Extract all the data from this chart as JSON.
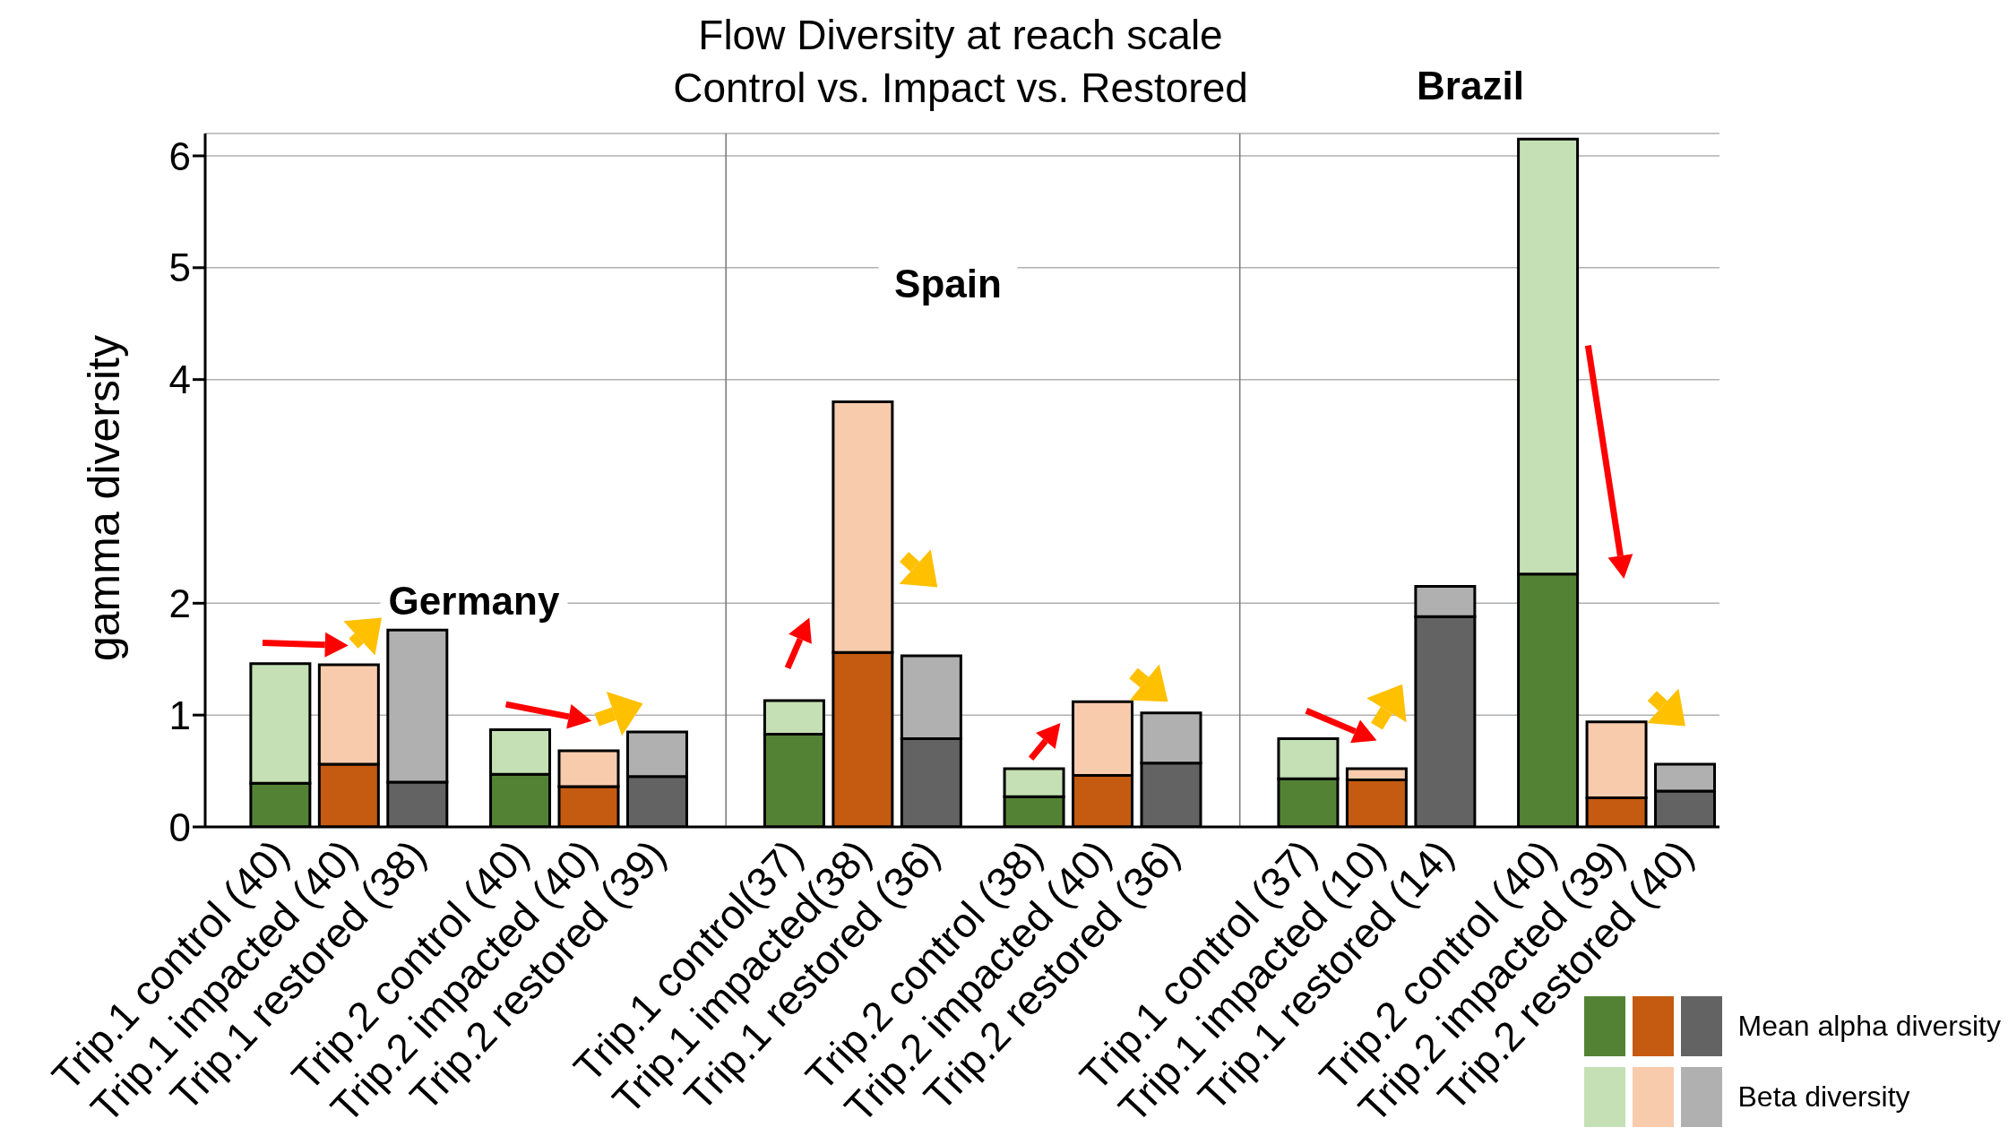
{
  "chart_data": {
    "type": "bar",
    "title": "Flow Diversity at reach scale",
    "subtitle": "Control vs. Impact vs. Restored",
    "ylabel": "gamma diversity",
    "annotations": [
      "Germany",
      "Spain",
      "Brazil"
    ],
    "categories": [
      "Trip.1 control (40)",
      "Trip.1 impacted (40)",
      "Trip.1 restored (38)",
      "Trip.2 control (40)",
      "Trip.2 impacted (40)",
      "Trip.2 restored (39)",
      "Trip.1 control(37)",
      "Trip.1 impacted(38)",
      "Trip.1 restored (36)",
      "Trip.2 control (38)",
      "Trip.2 impacted (40)",
      "Trip.2 restored (36)",
      "Trip.1 control (37)",
      "Trip.1 impacted (10)",
      "Trip.1 restored (14)",
      "Trip.2 control (40)",
      "Trip.2 impacted (39)",
      "Trip.2 restored (40)"
    ],
    "series": [
      {
        "name": "Mean alpha diversity",
        "colors": [
          "#548235",
          "#c55a11",
          "#636363",
          "#548235",
          "#c55a11",
          "#636363",
          "#548235",
          "#c55a11",
          "#636363",
          "#548235",
          "#c55a11",
          "#636363",
          "#548235",
          "#c55a11",
          "#636363",
          "#548235",
          "#c55a11",
          "#636363"
        ],
        "values": [
          0.39,
          0.56,
          0.4,
          0.47,
          0.36,
          0.45,
          0.83,
          1.56,
          0.79,
          0.27,
          0.46,
          0.57,
          0.43,
          0.42,
          1.88,
          2.26,
          0.26,
          0.32
        ]
      },
      {
        "name": "Beta diversity",
        "colors": [
          "#c5e0b4",
          "#f8cbad",
          "#b0b0b0",
          "#c5e0b4",
          "#f8cbad",
          "#b0b0b0",
          "#c5e0b4",
          "#f8cbad",
          "#b0b0b0",
          "#c5e0b4",
          "#f8cbad",
          "#b0b0b0",
          "#c5e0b4",
          "#f8cbad",
          "#b0b0b0",
          "#c5e0b4",
          "#f8cbad",
          "#b0b0b0"
        ],
        "values": [
          1.07,
          0.89,
          1.36,
          0.4,
          0.32,
          0.4,
          0.3,
          2.24,
          0.74,
          0.25,
          0.66,
          0.45,
          0.36,
          0.1,
          0.27,
          3.89,
          0.68,
          0.24
        ]
      }
    ],
    "stacked": true,
    "ylim": [
      0,
      6.2
    ],
    "yticks": [
      0,
      1,
      2,
      4,
      5,
      6
    ],
    "grid": "y",
    "legend": "bottom right"
  }
}
